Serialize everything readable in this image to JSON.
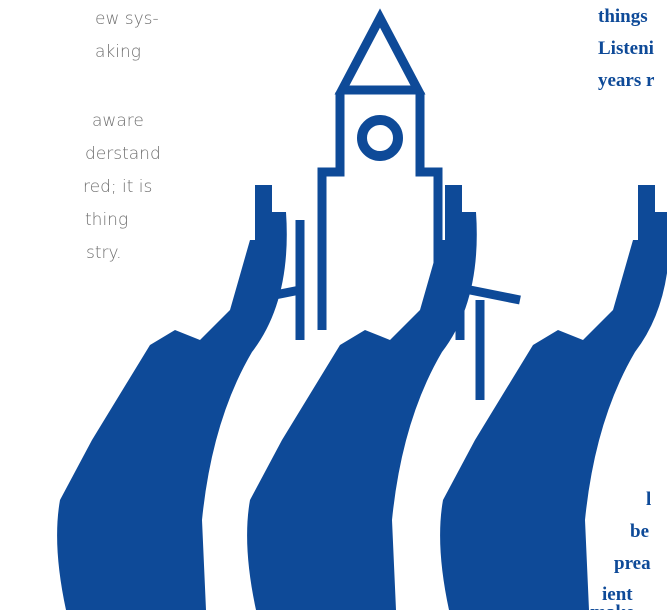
{
  "left_column": {
    "lines": [
      "ew sys-",
      "aking",
      "aware",
      "derstand",
      "red; it is",
      "thing",
      "stry."
    ]
  },
  "right_top": {
    "lines": [
      "things",
      "Listeni",
      "years r"
    ]
  },
  "right_bottom": {
    "lines": [
      "l",
      "be",
      "prea",
      "ient",
      "make"
    ]
  }
}
